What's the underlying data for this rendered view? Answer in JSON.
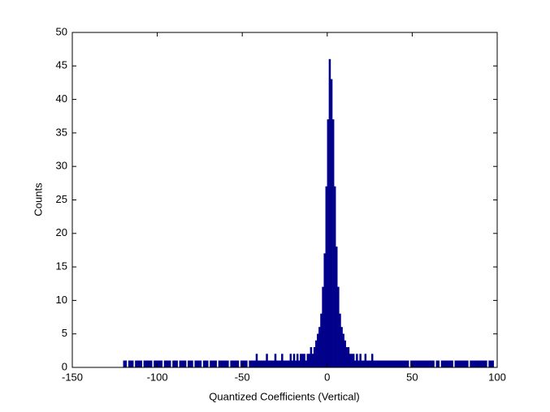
{
  "chart_data": {
    "type": "histogram",
    "xlabel": "Quantized Coefficients (Vertical)",
    "ylabel": "Counts",
    "color": "#00008b",
    "xlim": [
      -150,
      100
    ],
    "xticks": [
      -150,
      -100,
      -50,
      0,
      50,
      100
    ],
    "ylim": [
      0,
      50
    ],
    "yticks": [
      0,
      5,
      10,
      15,
      20,
      25,
      30,
      35,
      40,
      45,
      50
    ],
    "bins": [
      -120,
      -119,
      -118,
      -117,
      -116,
      -115,
      -114,
      -113,
      -112,
      -111,
      -110,
      -109,
      -108,
      -107,
      -106,
      -105,
      -104,
      -103,
      -102,
      -101,
      -100,
      -99,
      -98,
      -97,
      -96,
      -95,
      -94,
      -93,
      -92,
      -91,
      -90,
      -89,
      -88,
      -87,
      -86,
      -85,
      -84,
      -83,
      -82,
      -81,
      -80,
      -79,
      -78,
      -77,
      -76,
      -75,
      -74,
      -73,
      -72,
      -71,
      -70,
      -69,
      -68,
      -67,
      -66,
      -65,
      -64,
      -63,
      -62,
      -61,
      -60,
      -59,
      -58,
      -57,
      -56,
      -55,
      -54,
      -53,
      -52,
      -51,
      -50,
      -49,
      -48,
      -47,
      -46,
      -45,
      -44,
      -43,
      -42,
      -41,
      -40,
      -39,
      -38,
      -37,
      -36,
      -35,
      -34,
      -33,
      -32,
      -31,
      -30,
      -29,
      -28,
      -27,
      -26,
      -25,
      -24,
      -23,
      -22,
      -21,
      -20,
      -19,
      -18,
      -17,
      -16,
      -15,
      -14,
      -13,
      -12,
      -11,
      -10,
      -9,
      -8,
      -7,
      -6,
      -5,
      -4,
      -3,
      -2,
      -1,
      0,
      1,
      2,
      3,
      4,
      5,
      6,
      7,
      8,
      9,
      10,
      11,
      12,
      13,
      14,
      15,
      16,
      17,
      18,
      19,
      20,
      21,
      22,
      23,
      24,
      25,
      26,
      27,
      28,
      29,
      30,
      31,
      32,
      33,
      34,
      35,
      36,
      37,
      38,
      39,
      40,
      41,
      42,
      43,
      44,
      45,
      46,
      47,
      48,
      49,
      50,
      51,
      52,
      53,
      54,
      55,
      56,
      57,
      58,
      59,
      60,
      61,
      62,
      63,
      64,
      65,
      66,
      67,
      68,
      69,
      70,
      71,
      72,
      73,
      74,
      75,
      76,
      77,
      78,
      79,
      80,
      81,
      82,
      83,
      84,
      85,
      86,
      87,
      88,
      89,
      90,
      91,
      92,
      93,
      94,
      95,
      96,
      97,
      98
    ],
    "values": [
      1,
      1,
      0,
      1,
      1,
      1,
      0,
      1,
      1,
      1,
      1,
      0,
      1,
      1,
      1,
      1,
      1,
      0,
      1,
      1,
      1,
      1,
      1,
      0,
      1,
      1,
      1,
      1,
      0,
      1,
      1,
      1,
      0,
      1,
      1,
      1,
      1,
      0,
      1,
      1,
      1,
      0,
      1,
      1,
      1,
      1,
      0,
      1,
      1,
      1,
      0,
      1,
      1,
      1,
      1,
      0,
      1,
      1,
      1,
      1,
      1,
      1,
      0,
      1,
      1,
      1,
      1,
      1,
      0,
      1,
      1,
      1,
      1,
      0,
      1,
      1,
      1,
      1,
      2,
      1,
      1,
      1,
      1,
      1,
      2,
      1,
      1,
      1,
      1,
      2,
      1,
      1,
      1,
      2,
      1,
      1,
      1,
      1,
      2,
      1,
      2,
      1,
      2,
      1,
      2,
      2,
      2,
      1,
      2,
      2,
      3,
      2,
      3,
      4,
      5,
      6,
      8,
      12,
      17,
      27,
      37,
      46,
      43,
      37,
      27,
      18,
      12,
      8,
      6,
      5,
      4,
      3,
      3,
      2,
      2,
      2,
      1,
      2,
      1,
      2,
      1,
      1,
      2,
      1,
      1,
      1,
      2,
      1,
      1,
      1,
      1,
      1,
      1,
      1,
      1,
      1,
      1,
      1,
      1,
      1,
      1,
      1,
      1,
      1,
      1,
      1,
      1,
      1,
      0,
      1,
      1,
      1,
      1,
      1,
      1,
      1,
      1,
      1,
      1,
      1,
      1,
      1,
      1,
      0,
      1,
      1,
      0,
      1,
      1,
      1,
      1,
      1,
      1,
      1,
      0,
      1,
      1,
      1,
      1,
      1,
      1,
      1,
      1,
      0,
      1,
      1,
      1,
      1,
      1,
      1,
      1,
      1,
      1,
      1,
      0,
      1,
      1,
      1
    ]
  }
}
